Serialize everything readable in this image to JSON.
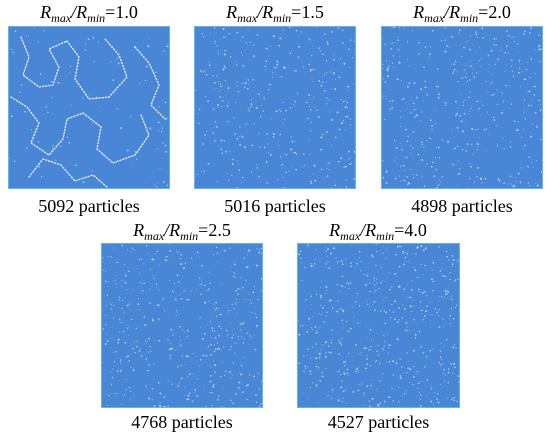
{
  "panels": [
    {
      "ratio_prefix": "R",
      "sub_max": "max",
      "sep": "/",
      "sub_min": "min",
      "value": "=1.0",
      "caption": "5092 particles",
      "speckle_density": 0.06,
      "has_grain_boundaries": true
    },
    {
      "ratio_prefix": "R",
      "sub_max": "max",
      "sep": "/",
      "sub_min": "min",
      "value": "=1.5",
      "caption": "5016 particles",
      "speckle_density": 0.22,
      "has_grain_boundaries": false
    },
    {
      "ratio_prefix": "R",
      "sub_max": "max",
      "sep": "/",
      "sub_min": "min",
      "value": "=2.0",
      "caption": "4898 particles",
      "speckle_density": 0.26,
      "has_grain_boundaries": false
    },
    {
      "ratio_prefix": "R",
      "sub_max": "max",
      "sep": "/",
      "sub_min": "min",
      "value": "=2.5",
      "caption": "4768 particles",
      "speckle_density": 0.3,
      "has_grain_boundaries": false
    },
    {
      "ratio_prefix": "R",
      "sub_max": "max",
      "sep": "/",
      "sub_min": "min",
      "value": "=4.0",
      "caption": "4527 particles",
      "speckle_density": 0.34,
      "has_grain_boundaries": false
    }
  ],
  "colors": {
    "particle_fill": "#4a86d6",
    "border": "#62b6e6",
    "speckle": "#dbe9f8"
  }
}
